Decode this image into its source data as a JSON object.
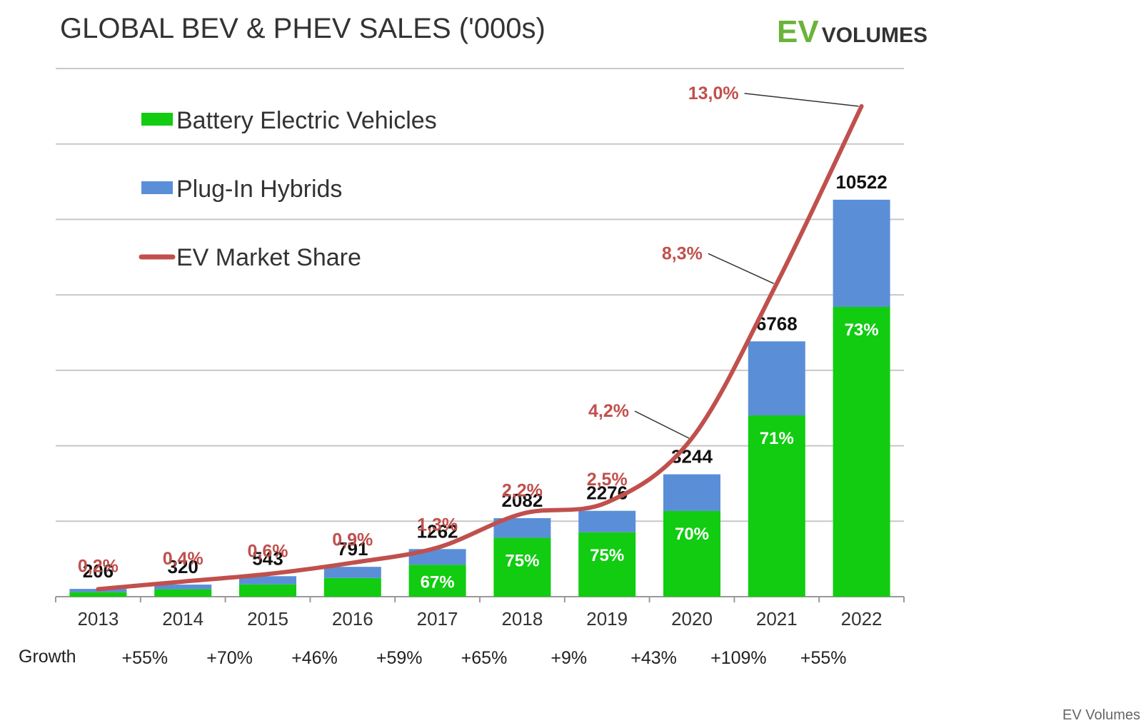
{
  "header": {
    "title": "GLOBAL BEV & PHEV SALES ('000s)",
    "brand_ev": "EV",
    "brand_volumes": "VOLUMES"
  },
  "footer": {
    "credit": "EV Volumes"
  },
  "colors": {
    "bev": "#11cc11",
    "phev": "#5a8fd8",
    "share": "#c0504d",
    "grid": "#c8c8c8",
    "axis": "#999999",
    "label_dark": "#111111",
    "inner_label": "#ffffff"
  },
  "chart_data": {
    "type": "bar",
    "stacked": true,
    "title": "GLOBAL BEV & PHEV SALES ('000s)",
    "categories": [
      "2013",
      "2014",
      "2015",
      "2016",
      "2017",
      "2018",
      "2019",
      "2020",
      "2021",
      "2022"
    ],
    "totals": [
      206,
      320,
      543,
      791,
      1262,
      2082,
      2276,
      3244,
      6768,
      10522
    ],
    "series": [
      {
        "name": "Battery Electric Vehicles",
        "values": [
          120,
          197,
          326,
          495,
          846,
          1562,
          1707,
          2271,
          4805,
          7681
        ]
      },
      {
        "name": "Plug-In Hybrids",
        "values": [
          86,
          123,
          217,
          296,
          416,
          520,
          569,
          973,
          1963,
          2841
        ]
      }
    ],
    "bev_share_labels": [
      "",
      "",
      "",
      "",
      "67%",
      "75%",
      "75%",
      "70%",
      "71%",
      "73%"
    ],
    "line_series": {
      "name": "EV Market Share",
      "values": [
        0.2,
        0.4,
        0.6,
        0.9,
        1.3,
        2.2,
        2.5,
        4.2,
        8.3,
        13.0
      ],
      "labels": [
        "0,2%",
        "0,4%",
        "0,6%",
        "0,9%",
        "1,3%",
        "2,2%",
        "2,5%",
        "4,2%",
        "8,3%",
        "13,0%"
      ]
    },
    "growth_label": "Growth",
    "growth": [
      "+55%",
      "+70%",
      "+46%",
      "+59%",
      "+65%",
      "+9%",
      "+43%",
      "+109%",
      "+55%"
    ],
    "ylim_sales": [
      0,
      14000
    ],
    "ylim_share": [
      0,
      14
    ],
    "grid": true,
    "legend_position": "top-left"
  }
}
